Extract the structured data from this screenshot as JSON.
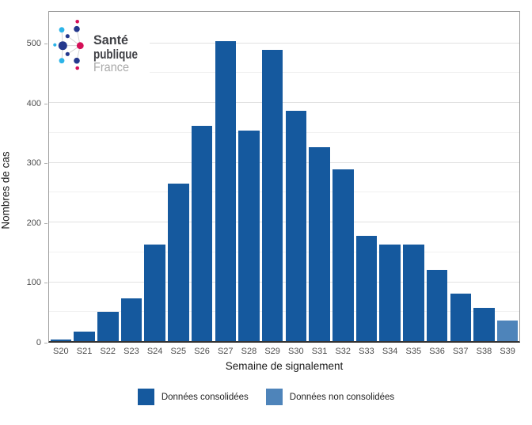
{
  "logo": {
    "line1": "Santé",
    "line2": "publique",
    "line3": "France",
    "colors": {
      "navy": "#24388D",
      "cyan": "#2CB4E8",
      "crimson": "#D50F57",
      "text_dark": "#3F4045",
      "text_light": "#A8A8A8",
      "link_line": "#cfcfcf"
    }
  },
  "chart_data": {
    "type": "bar",
    "title": "",
    "xlabel": "Semaine de signalement",
    "ylabel": "Nombres de cas",
    "categories": [
      "S20",
      "S21",
      "S22",
      "S23",
      "S24",
      "S25",
      "S26",
      "S27",
      "S28",
      "S29",
      "S30",
      "S31",
      "S32",
      "S33",
      "S34",
      "S35",
      "S36",
      "S37",
      "S38",
      "S39"
    ],
    "series": [
      {
        "name": "Données consolidées",
        "color": "#15599E",
        "values": [
          3,
          16,
          49,
          71,
          161,
          264,
          360,
          502,
          352,
          488,
          386,
          324,
          287,
          176,
          161,
          161,
          119,
          79,
          56,
          null
        ]
      },
      {
        "name": "Données non consolidées",
        "color": "#4E84BA",
        "values": [
          null,
          null,
          null,
          null,
          null,
          null,
          null,
          null,
          null,
          null,
          null,
          null,
          null,
          null,
          null,
          null,
          null,
          null,
          null,
          34
        ]
      }
    ],
    "ylim": [
      0,
      500
    ],
    "yticks": [
      0,
      100,
      200,
      300,
      400,
      500
    ],
    "minor_grid_step": 50,
    "grid": true,
    "legend_position": "bottom",
    "legend": [
      {
        "label": "Données consolidées",
        "color": "#15599E"
      },
      {
        "label": "Données non consolidées",
        "color": "#4E84BA"
      }
    ]
  },
  "style_colors": {
    "panel_border": "#9b9b9b",
    "axis_line": "#333333",
    "major_grid": "#e2e2e2",
    "minor_grid": "#f1f1f1",
    "tick_label": "#4d4d4d",
    "axis_title": "#1a1a1a"
  }
}
